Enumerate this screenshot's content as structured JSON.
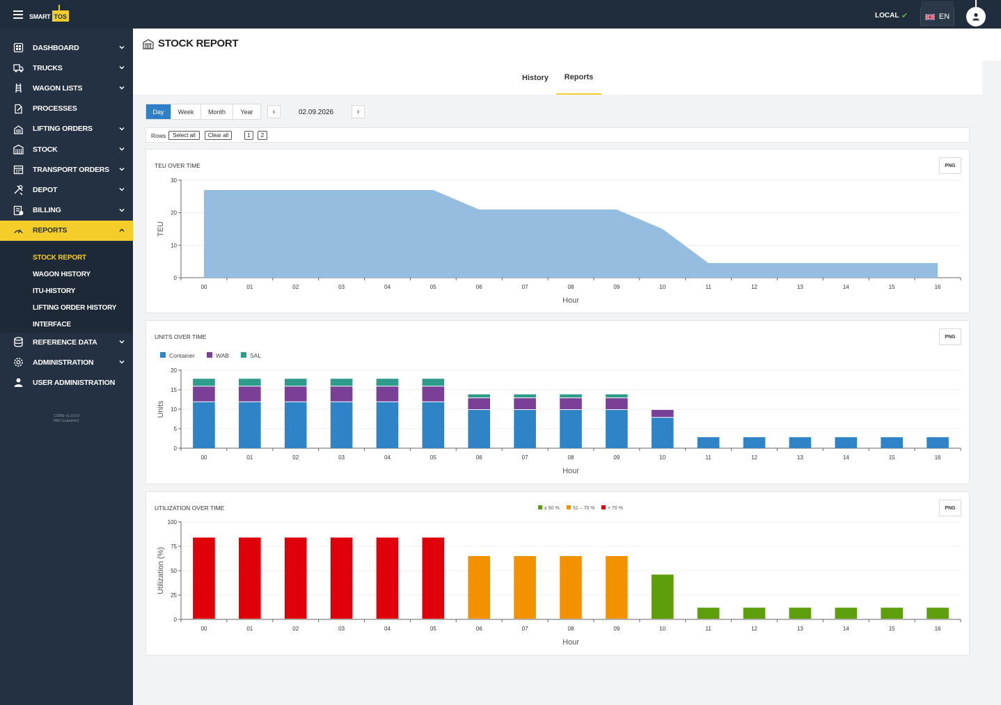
{
  "topbar": {
    "logo_smart": "SMART",
    "logo_tos": "TOS",
    "environment": "LOCAL",
    "language": "EN"
  },
  "sidebar": {
    "items": [
      {
        "label": "DASHBOARD",
        "icon": "dashboard-icon",
        "chevron": "down"
      },
      {
        "label": "TRUCKS",
        "icon": "truck-icon",
        "chevron": "down"
      },
      {
        "label": "WAGON LISTS",
        "icon": "rail-icon",
        "chevron": "down"
      },
      {
        "label": "PROCESSES",
        "icon": "process-icon",
        "chevron": ""
      },
      {
        "label": "LIFTING ORDERS",
        "icon": "crane-icon",
        "chevron": "down"
      },
      {
        "label": "STOCK",
        "icon": "warehouse-icon",
        "chevron": "down"
      },
      {
        "label": "TRANSPORT ORDERS",
        "icon": "calendar-icon",
        "chevron": "down"
      },
      {
        "label": "DEPOT",
        "icon": "tools-icon",
        "chevron": "down"
      },
      {
        "label": "BILLING",
        "icon": "billing-icon",
        "chevron": "down"
      },
      {
        "label": "REPORTS",
        "icon": "gauge-icon",
        "chevron": "up"
      }
    ],
    "sub_items": [
      "STOCK REPORT",
      "WAGON HISTORY",
      "ITU-HISTORY",
      "LIFTING ORDER HISTORY",
      "INTERFACE"
    ],
    "bottom_items": [
      {
        "label": "REFERENCE DATA",
        "icon": "database-icon",
        "chevron": "down"
      },
      {
        "label": "ADMINISTRATION",
        "icon": "gear-icon",
        "chevron": "down"
      },
      {
        "label": "USER ADMINISTRATION",
        "icon": "user-icon",
        "chevron": ""
      }
    ],
    "version_line1": "CORE v1.0.0.0",
    "version_line2": "RM Customer1"
  },
  "page": {
    "title": "STOCK REPORT",
    "tabs": [
      "History",
      "Reports"
    ],
    "active_tab": "Reports"
  },
  "toolbar": {
    "periods": [
      "Day",
      "Week",
      "Month",
      "Year"
    ],
    "active_period": "Day",
    "prev": "‹",
    "next": "›",
    "date": "02.09.2026",
    "rows_label": "Rows",
    "select_all": "Select all",
    "clear_all": "Clear all",
    "row_pages": [
      "1",
      "2"
    ]
  },
  "colors": {
    "accent": "#f5cd2a",
    "sidebar": "#233142",
    "topbar": "#1f2d3d",
    "primary": "#2f7fc6"
  },
  "charts": {
    "png_label": "PNG"
  },
  "chart_data": [
    {
      "type": "area",
      "title": "TEU OVER TIME",
      "xlabel": "Hour",
      "ylabel": "TEU",
      "x": [
        "00",
        "01",
        "02",
        "03",
        "04",
        "05",
        "06",
        "07",
        "08",
        "09",
        "10",
        "11",
        "12",
        "13",
        "14",
        "15",
        "16"
      ],
      "ylim": [
        0,
        30
      ],
      "yticks": [
        0,
        10,
        20,
        30
      ],
      "series": [
        {
          "values": [
            27,
            27,
            27,
            27,
            27,
            27,
            21,
            21,
            21,
            21,
            15,
            4.5,
            4.5,
            4.5,
            4.5,
            4.5,
            4.5
          ],
          "color": "#94bde0"
        }
      ]
    },
    {
      "type": "bar",
      "stacked": true,
      "title": "UNITS OVER TIME",
      "xlabel": "Hour",
      "ylabel": "Units",
      "legend": "top-left",
      "categories": [
        "00",
        "01",
        "02",
        "03",
        "04",
        "05",
        "06",
        "07",
        "08",
        "09",
        "10",
        "11",
        "12",
        "13",
        "14",
        "15",
        "16"
      ],
      "ylim": [
        0,
        20
      ],
      "yticks": [
        0,
        5,
        10,
        15,
        20
      ],
      "series": [
        {
          "name": "Container",
          "color": "#2f84c7",
          "values": [
            12,
            12,
            12,
            12,
            12,
            12,
            10,
            10,
            10,
            10,
            8,
            3,
            3,
            3,
            3,
            3,
            3
          ]
        },
        {
          "name": "WAB",
          "color": "#7a3f97",
          "values": [
            4,
            4,
            4,
            4,
            4,
            4,
            3,
            3,
            3,
            3,
            2,
            0,
            0,
            0,
            0,
            0,
            0
          ]
        },
        {
          "name": "SAL",
          "color": "#2e9c8c",
          "values": [
            2,
            2,
            2,
            2,
            2,
            2,
            1,
            1,
            1,
            1,
            0,
            0,
            0,
            0,
            0,
            0,
            0
          ]
        }
      ]
    },
    {
      "type": "bar",
      "title": "UTILIZATION OVER TIME",
      "xlabel": "Hour",
      "ylabel": "Utilization (%)",
      "legend": "top-center",
      "categories": [
        "00",
        "01",
        "02",
        "03",
        "04",
        "05",
        "06",
        "07",
        "08",
        "09",
        "10",
        "11",
        "12",
        "13",
        "14",
        "15",
        "16"
      ],
      "ylim": [
        0,
        100
      ],
      "yticks": [
        0,
        25,
        50,
        75,
        100
      ],
      "values": [
        84,
        84,
        84,
        84,
        84,
        84,
        65,
        65,
        65,
        65,
        46,
        12,
        12,
        12,
        12,
        12,
        12
      ],
      "legend_entries": [
        {
          "name": "≤ 50 %",
          "color": "#5c9e0b"
        },
        {
          "name": "51 – 70 %",
          "color": "#f39200"
        },
        {
          "name": "> 70 %",
          "color": "#e00009"
        }
      ]
    }
  ]
}
